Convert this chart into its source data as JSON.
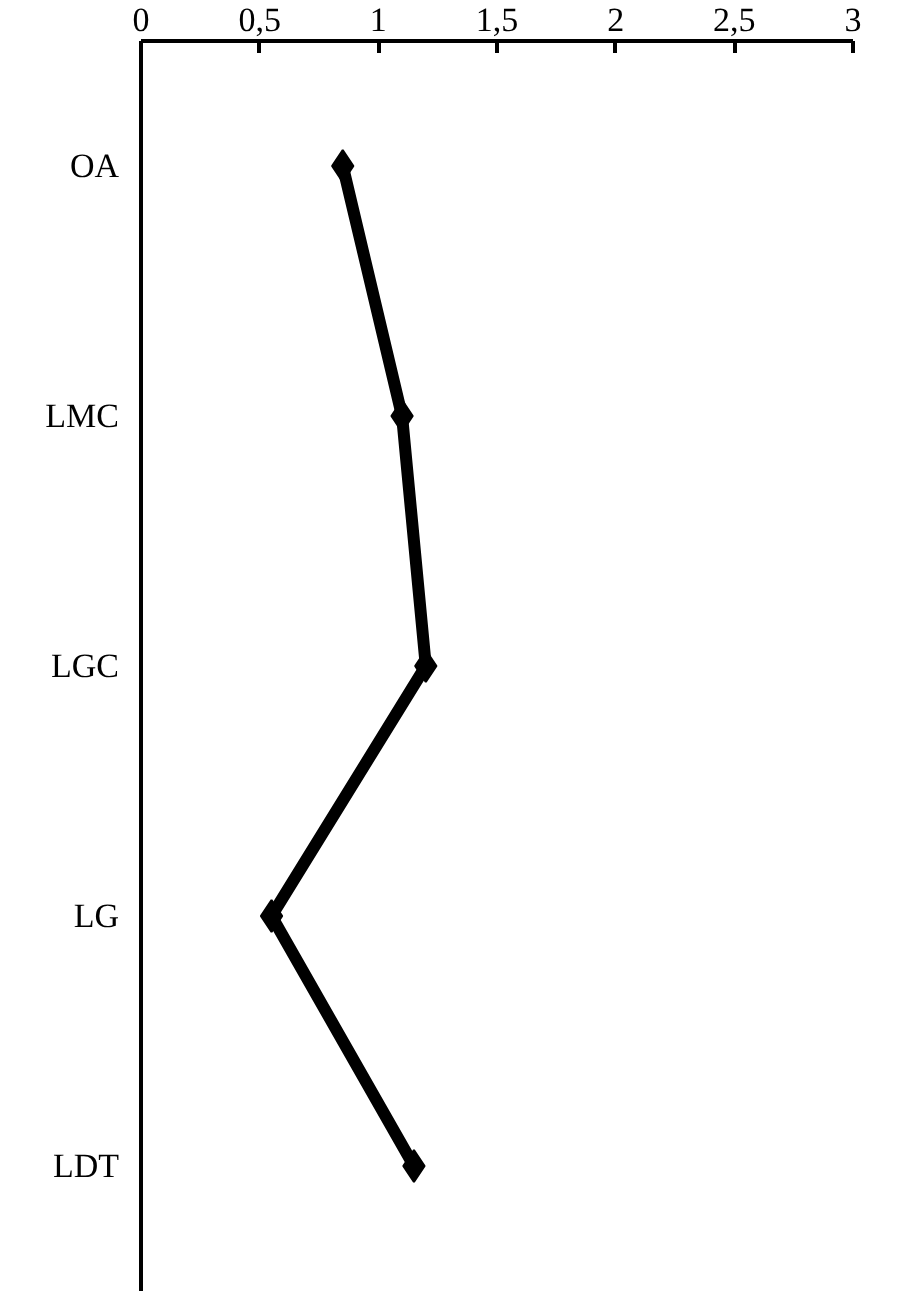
{
  "chart_data": {
    "type": "line",
    "orientation": "horizontal",
    "categories": [
      "OA",
      "LMC",
      "LGC",
      "LG",
      "LDT"
    ],
    "values": [
      0.85,
      1.1,
      1.2,
      0.55,
      1.15
    ],
    "color": "#000000",
    "marker": "diamond",
    "line_style": "solid",
    "grid": false,
    "xlim": [
      0,
      3
    ],
    "xticks": [
      0,
      {
        "value": 0.5,
        "label": "0,5"
      },
      1,
      {
        "value": 1.5,
        "label": "1,5"
      },
      2,
      {
        "value": 2.5,
        "label": "2,5"
      },
      3
    ]
  }
}
